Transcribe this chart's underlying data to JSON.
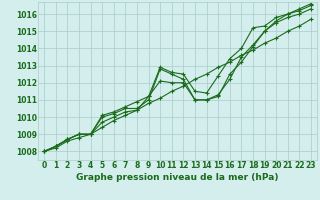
{
  "x": [
    0,
    1,
    2,
    3,
    4,
    5,
    6,
    7,
    8,
    9,
    10,
    11,
    12,
    13,
    14,
    15,
    16,
    17,
    18,
    19,
    20,
    21,
    22,
    23
  ],
  "line1": [
    1008.0,
    1008.2,
    1008.6,
    1008.8,
    1009.0,
    1009.4,
    1009.8,
    1010.1,
    1010.4,
    1010.8,
    1011.1,
    1011.5,
    1011.8,
    1012.2,
    1012.5,
    1012.9,
    1013.2,
    1013.6,
    1013.9,
    1014.3,
    1014.6,
    1015.0,
    1015.3,
    1015.7
  ],
  "line2": [
    1008.0,
    1008.3,
    1008.7,
    1009.0,
    1009.0,
    1009.7,
    1010.0,
    1010.3,
    1010.4,
    1011.2,
    1012.1,
    1012.0,
    1012.0,
    1011.0,
    1011.0,
    1011.2,
    1012.5,
    1013.2,
    1014.1,
    1015.0,
    1015.5,
    1015.8,
    1016.0,
    1016.3
  ],
  "line3": [
    1008.0,
    1008.3,
    1008.7,
    1009.0,
    1009.0,
    1010.0,
    1010.2,
    1010.5,
    1010.5,
    1011.0,
    1012.8,
    1012.5,
    1012.2,
    1011.0,
    1011.0,
    1011.3,
    1012.2,
    1013.5,
    1014.2,
    1015.0,
    1015.6,
    1016.0,
    1016.2,
    1016.5
  ],
  "line4": [
    1008.0,
    1008.3,
    1008.7,
    1009.0,
    1009.0,
    1010.1,
    1010.3,
    1010.6,
    1010.9,
    1011.2,
    1012.9,
    1012.6,
    1012.5,
    1011.5,
    1011.4,
    1012.4,
    1013.4,
    1014.0,
    1015.2,
    1015.3,
    1015.8,
    1016.0,
    1016.3,
    1016.6
  ],
  "ylim": [
    1007.5,
    1016.7
  ],
  "yticks": [
    1008,
    1009,
    1010,
    1011,
    1012,
    1013,
    1014,
    1015,
    1016
  ],
  "xticks": [
    0,
    1,
    2,
    3,
    4,
    5,
    6,
    7,
    8,
    9,
    10,
    11,
    12,
    13,
    14,
    15,
    16,
    17,
    18,
    19,
    20,
    21,
    22,
    23
  ],
  "xlabel": "Graphe pression niveau de la mer (hPa)",
  "line_color": "#1a6b1a",
  "marker": "+",
  "bg_color": "#d4eeee",
  "grid_color": "#aacccc",
  "title_color": "#1a6b1a",
  "tick_fontsize": 5.5,
  "label_fontsize": 6.5,
  "linewidth": 0.8
}
